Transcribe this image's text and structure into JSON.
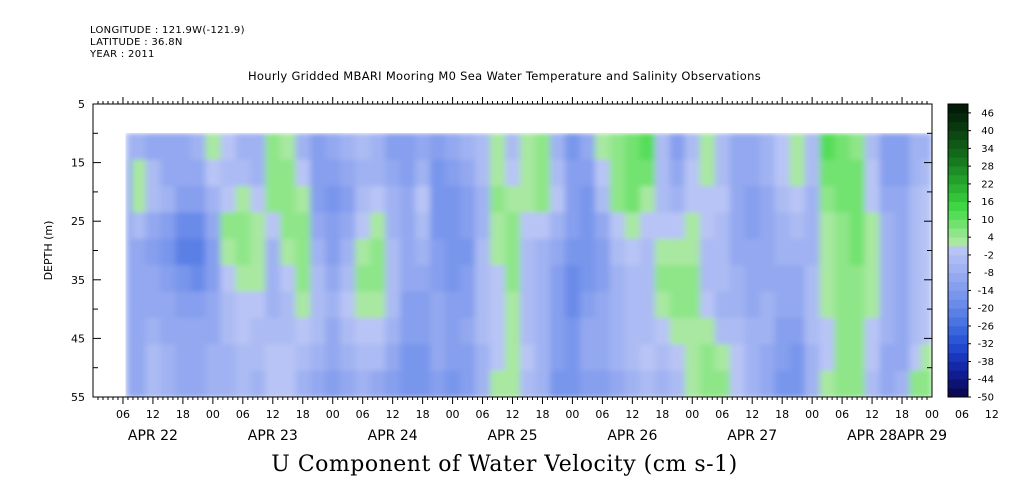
{
  "header": {
    "longitude": "LONGITUDE : 121.9W(-121.9)",
    "latitude": "LATITUDE : 36.8N",
    "year": "YEAR : 2011"
  },
  "chart_data": {
    "type": "heatmap",
    "title": "Hourly Gridded MBARI Mooring M0 Sea Water Temperature and Salinity Observations",
    "subtitle": "U Component of Water Velocity (cm s-1)",
    "ylabel": "DEPTH (m)",
    "y_axis": {
      "range": [
        5,
        55
      ],
      "inverted": true,
      "ticks": [
        5,
        15,
        25,
        35,
        45,
        55
      ]
    },
    "x_axis": {
      "range_hours": [
        0,
        168
      ],
      "hour_labels": [
        "06",
        "12",
        "18",
        "00",
        "06",
        "12",
        "18",
        "00",
        "06",
        "12",
        "18",
        "00",
        "06",
        "12",
        "18",
        "00",
        "06",
        "12",
        "18",
        "00",
        "06",
        "12",
        "18",
        "00",
        "06",
        "12",
        "18",
        "00",
        "06",
        "12",
        "18",
        "00"
      ],
      "date_labels": [
        "APR 22",
        "APR 23",
        "APR 24",
        "APR 25",
        "APR 26",
        "APR 27",
        "APR 28",
        "APR 29"
      ]
    },
    "data_depth_range": [
      10,
      55
    ],
    "data_start_hour": 6.6,
    "colorbar": {
      "labels": [
        "46",
        "40",
        "34",
        "28",
        "22",
        "16",
        "10",
        "4",
        "-2",
        "-8",
        "-14",
        "-20",
        "-26",
        "-32",
        "-38",
        "-44",
        "-50"
      ],
      "levels": [
        -50,
        -47,
        -44,
        -41,
        -38,
        -35,
        -32,
        -29,
        -26,
        -23,
        -20,
        -17,
        -14,
        -11,
        -8,
        -5,
        -2,
        1,
        4,
        7,
        10,
        13,
        16,
        19,
        22,
        25,
        28,
        31,
        34,
        37,
        40,
        43,
        46,
        49
      ],
      "colors": [
        "#0a0a55",
        "#0d1373",
        "#101c8f",
        "#1428a8",
        "#1a36bd",
        "#2246cc",
        "#2c56d6",
        "#3a66dd",
        "#4a74e2",
        "#5a80e6",
        "#6a8be9",
        "#7896ec",
        "#869fee",
        "#93a8f0",
        "#a0b2f2",
        "#acbbf3",
        "#b8c4f5",
        "#a8e8a0",
        "#8ee688",
        "#72e26f",
        "#55dd58",
        "#3fd545",
        "#33c43a",
        "#2bb232",
        "#23a02b",
        "#1d8d25",
        "#177a1f",
        "#13691a",
        "#0f5816",
        "#0b4812",
        "#08380e",
        "#05290a",
        "#031c07"
      ]
    },
    "columns": [
      {
        "h": 6.6,
        "v": [
          -8,
          -9,
          -10,
          -10,
          -9,
          -9,
          -9,
          -9,
          -10,
          -10
        ]
      },
      {
        "h": 9,
        "v": [
          -6,
          2,
          3,
          -5,
          -9,
          -10,
          -10,
          -9,
          -9,
          -9
        ]
      },
      {
        "h": 12,
        "v": [
          -10,
          -4,
          -3,
          -10,
          -12,
          -11,
          -10,
          -8,
          -5,
          -4
        ]
      },
      {
        "h": 15,
        "v": [
          -11,
          -9,
          -8,
          -14,
          -16,
          -13,
          -11,
          -9,
          -7,
          -6
        ]
      },
      {
        "h": 18,
        "v": [
          -9,
          -10,
          -12,
          -18,
          -21,
          -17,
          -12,
          -10,
          -9,
          -9
        ]
      },
      {
        "h": 21,
        "v": [
          -6,
          -9,
          -13,
          -19,
          -22,
          -18,
          -13,
          -11,
          -10,
          -10
        ]
      },
      {
        "h": 24,
        "v": [
          3,
          0,
          -6,
          -10,
          -12,
          -12,
          -11,
          -9,
          -8,
          -8
        ]
      },
      {
        "h": 27,
        "v": [
          -2,
          -4,
          0,
          4,
          3,
          0,
          -4,
          -5,
          -6,
          -6
        ]
      },
      {
        "h": 30,
        "v": [
          -6,
          -4,
          3,
          6,
          4,
          2,
          0,
          -2,
          -3,
          -3
        ]
      },
      {
        "h": 33,
        "v": [
          -8,
          -6,
          -2,
          2,
          3,
          1,
          -2,
          -4,
          -5,
          -6
        ]
      },
      {
        "h": 36,
        "v": [
          4,
          6,
          4,
          -2,
          -6,
          -7,
          -6,
          -4,
          -2,
          0
        ]
      },
      {
        "h": 39,
        "v": [
          3,
          5,
          6,
          4,
          2,
          -2,
          -4,
          -4,
          -2,
          0
        ]
      },
      {
        "h": 42,
        "v": [
          -6,
          -2,
          2,
          5,
          6,
          4,
          1,
          -2,
          -4,
          -6
        ]
      },
      {
        "h": 45,
        "v": [
          -12,
          -14,
          -12,
          -9,
          -6,
          -4,
          -3,
          -4,
          -6,
          -9
        ]
      },
      {
        "h": 48,
        "v": [
          -10,
          -14,
          -16,
          -14,
          -12,
          -10,
          -8,
          -9,
          -11,
          -13
        ]
      },
      {
        "h": 51,
        "v": [
          -8,
          -10,
          -12,
          -10,
          -6,
          -4,
          -2,
          -4,
          -7,
          -10
        ]
      },
      {
        "h": 54,
        "v": [
          -4,
          -6,
          -4,
          0,
          2,
          4,
          3,
          0,
          -4,
          -8
        ]
      },
      {
        "h": 57,
        "v": [
          -8,
          -6,
          -2,
          3,
          5,
          4,
          2,
          -1,
          -5,
          -9
        ]
      },
      {
        "h": 60,
        "v": [
          -12,
          -10,
          -8,
          -6,
          -4,
          -3,
          -5,
          -7,
          -10,
          -12
        ]
      },
      {
        "h": 63,
        "v": [
          -14,
          -13,
          -11,
          -10,
          -9,
          -10,
          -12,
          -14,
          -16,
          -17
        ]
      },
      {
        "h": 66,
        "v": [
          -9,
          -6,
          -2,
          -3,
          -6,
          -9,
          -12,
          -14,
          -16,
          -17
        ]
      },
      {
        "h": 69,
        "v": [
          -14,
          -16,
          -17,
          -16,
          -14,
          -12,
          -10,
          -10,
          -11,
          -13
        ]
      },
      {
        "h": 72,
        "v": [
          -11,
          -13,
          -15,
          -16,
          -17,
          -16,
          -14,
          -13,
          -14,
          -16
        ]
      },
      {
        "h": 75,
        "v": [
          -6,
          -9,
          -12,
          -14,
          -15,
          -14,
          -12,
          -11,
          -12,
          -14
        ]
      },
      {
        "h": 78,
        "v": [
          -3,
          -5,
          -6,
          -6,
          -5,
          -4,
          -3,
          -4,
          -6,
          -8
        ]
      },
      {
        "h": 81,
        "v": [
          2,
          3,
          4,
          3,
          2,
          0,
          -2,
          -1,
          0,
          1
        ]
      },
      {
        "h": 84,
        "v": [
          -4,
          -2,
          2,
          5,
          6,
          5,
          3,
          2,
          2,
          3
        ]
      },
      {
        "h": 87,
        "v": [
          2,
          3,
          2,
          0,
          -3,
          -5,
          -5,
          -3,
          -2,
          -4
        ]
      },
      {
        "h": 90,
        "v": [
          4,
          6,
          5,
          -1,
          -6,
          -8,
          -8,
          -7,
          -7,
          -8
        ]
      },
      {
        "h": 93,
        "v": [
          -8,
          -4,
          -2,
          -6,
          -10,
          -12,
          -13,
          -13,
          -14,
          -15
        ]
      },
      {
        "h": 96,
        "v": [
          -17,
          -14,
          -12,
          -14,
          -17,
          -19,
          -18,
          -16,
          -15,
          -16
        ]
      },
      {
        "h": 99,
        "v": [
          -11,
          -14,
          -16,
          -17,
          -17,
          -15,
          -12,
          -10,
          -10,
          -12
        ]
      },
      {
        "h": 102,
        "v": [
          2,
          0,
          -5,
          -10,
          -12,
          -12,
          -11,
          -10,
          -11,
          -13
        ]
      },
      {
        "h": 105,
        "v": [
          5,
          6,
          5,
          0,
          -4,
          -6,
          -6,
          -6,
          -7,
          -9
        ]
      },
      {
        "h": 108,
        "v": [
          8,
          9,
          7,
          3,
          -1,
          -3,
          -4,
          -4,
          -4,
          -6
        ]
      },
      {
        "h": 111,
        "v": [
          11,
          7,
          3,
          -1,
          -3,
          -4,
          -4,
          -3,
          -2,
          -3
        ]
      },
      {
        "h": 114,
        "v": [
          -4,
          -4,
          -3,
          0,
          3,
          4,
          3,
          0,
          -3,
          -6
        ]
      },
      {
        "h": 117,
        "v": [
          -12,
          -10,
          -7,
          -2,
          3,
          6,
          5,
          2,
          -2,
          -5
        ]
      },
      {
        "h": 120,
        "v": [
          -4,
          -2,
          0,
          2,
          3,
          4,
          4,
          3,
          2,
          1
        ]
      },
      {
        "h": 123,
        "v": [
          3,
          2,
          0,
          -2,
          -3,
          -3,
          -2,
          1,
          4,
          6
        ]
      },
      {
        "h": 126,
        "v": [
          -4,
          -3,
          -2,
          -3,
          -4,
          -5,
          -6,
          -4,
          1,
          4
        ]
      },
      {
        "h": 129,
        "v": [
          -9,
          -10,
          -10,
          -10,
          -9,
          -8,
          -7,
          -5,
          -2,
          0
        ]
      },
      {
        "h": 132,
        "v": [
          -10,
          -11,
          -12,
          -12,
          -11,
          -10,
          -9,
          -8,
          -7,
          -6
        ]
      },
      {
        "h": 135,
        "v": [
          -6,
          -8,
          -9,
          -10,
          -10,
          -9,
          -8,
          -8,
          -9,
          -10
        ]
      },
      {
        "h": 138,
        "v": [
          0,
          -2,
          -4,
          -6,
          -8,
          -9,
          -10,
          -12,
          -14,
          -15
        ]
      },
      {
        "h": 141,
        "v": [
          3,
          2,
          -1,
          -4,
          -7,
          -9,
          -11,
          -13,
          -15,
          -16
        ]
      },
      {
        "h": 144,
        "v": [
          -3,
          -5,
          -7,
          -7,
          -6,
          -5,
          -4,
          -5,
          -6,
          -8
        ]
      },
      {
        "h": 147,
        "v": [
          10,
          8,
          5,
          3,
          2,
          2,
          1,
          0,
          0,
          1
        ]
      },
      {
        "h": 150,
        "v": [
          8,
          8,
          7,
          6,
          5,
          5,
          4,
          4,
          4,
          5
        ]
      },
      {
        "h": 153,
        "v": [
          6,
          7,
          8,
          8,
          7,
          6,
          5,
          4,
          5,
          6
        ]
      },
      {
        "h": 156,
        "v": [
          -4,
          -2,
          0,
          2,
          3,
          3,
          2,
          0,
          -2,
          -4
        ]
      },
      {
        "h": 159,
        "v": [
          -12,
          -12,
          -10,
          -8,
          -6,
          -6,
          -7,
          -8,
          -9,
          -10
        ]
      },
      {
        "h": 162,
        "v": [
          -12,
          -12,
          -11,
          -10,
          -9,
          -9,
          -10,
          -11,
          -10,
          -8
        ]
      },
      {
        "h": 165,
        "v": [
          -8,
          -6,
          -4,
          -3,
          -3,
          -4,
          -5,
          -4,
          0,
          4
        ]
      },
      {
        "h": 166.5,
        "v": [
          -6,
          -3,
          -1,
          0,
          0,
          -1,
          -2,
          -1,
          2,
          5
        ]
      }
    ]
  }
}
